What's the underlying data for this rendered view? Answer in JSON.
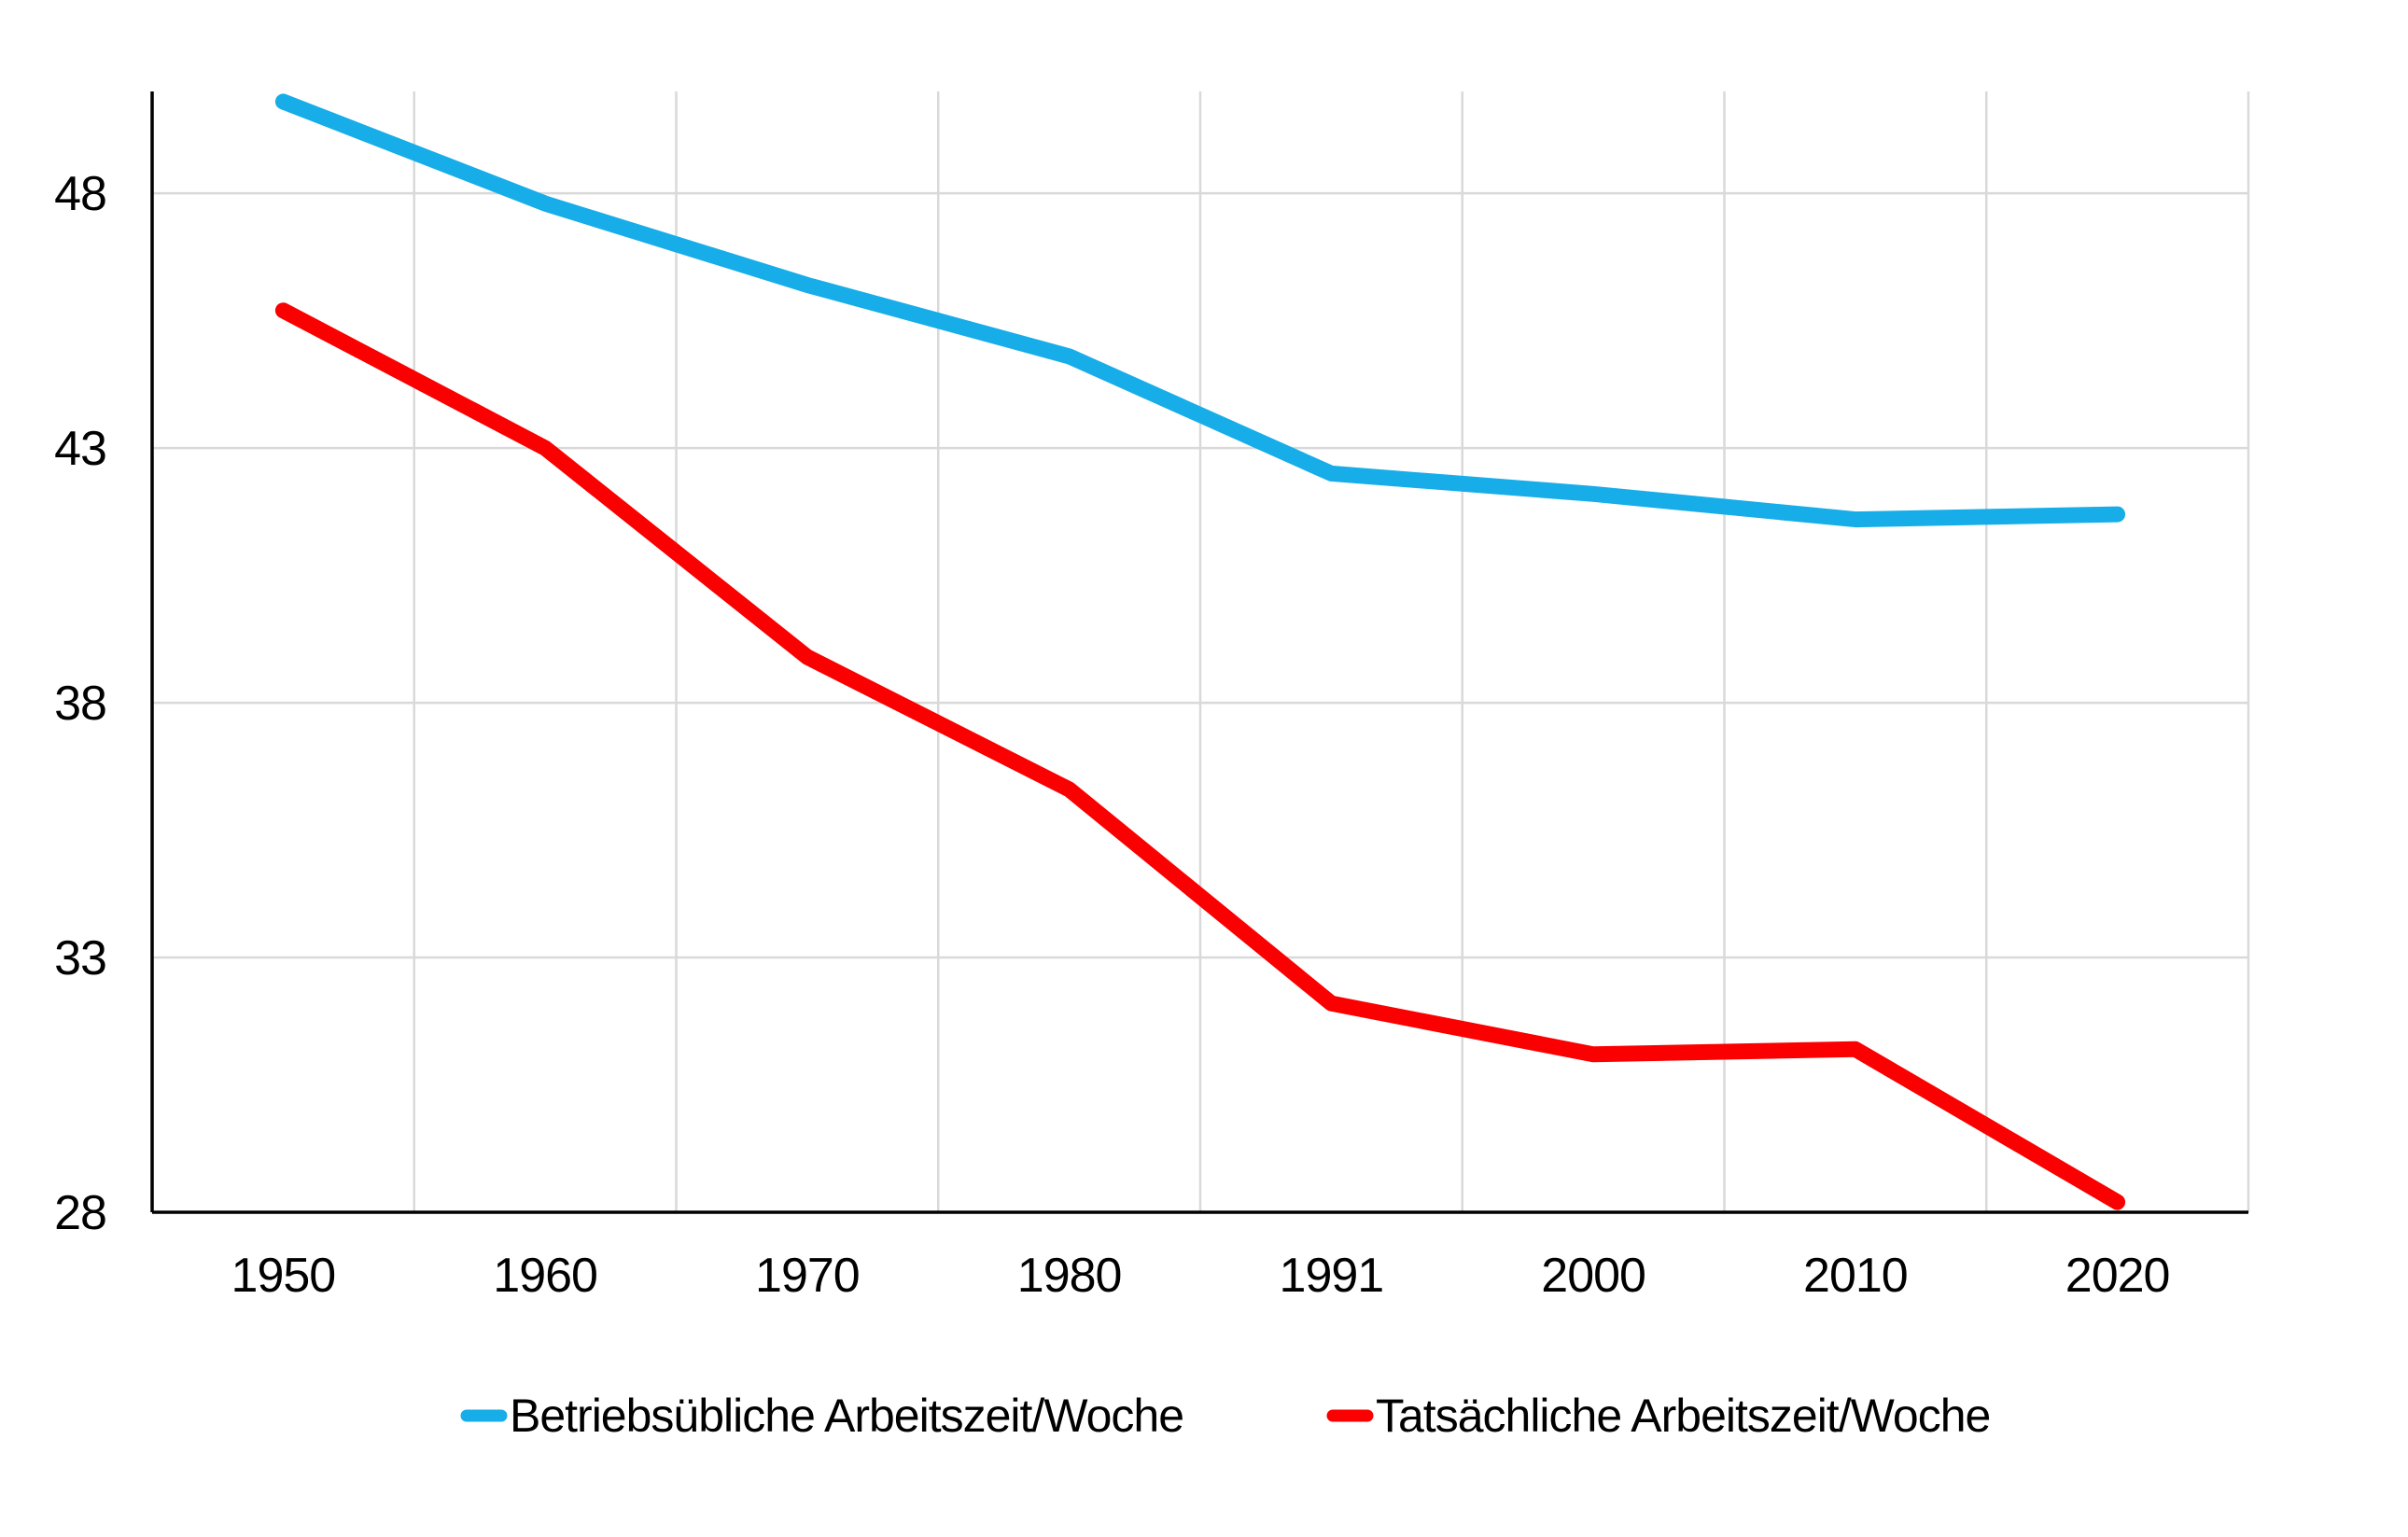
{
  "chart_data": {
    "type": "line",
    "title": "",
    "xlabel": "",
    "ylabel": "",
    "categories": [
      "1950",
      "1960",
      "1970",
      "1980",
      "1991",
      "2000",
      "2010",
      "2020"
    ],
    "series": [
      {
        "name": "Betriebsübliche Arbeitszeit/Woche",
        "color": "#17ADE8",
        "values": [
          49.8,
          47.8,
          46.2,
          44.8,
          42.5,
          42.1,
          41.6,
          41.7
        ]
      },
      {
        "name": "Tatsächliche Arbeitszeit/Woche",
        "color": "#FB0000",
        "values": [
          45.7,
          43.0,
          38.9,
          36.3,
          32.1,
          31.1,
          31.2,
          28.2
        ]
      }
    ],
    "ylim": [
      28,
      50
    ],
    "yticks": [
      28,
      33,
      38,
      43,
      48
    ],
    "grid": true,
    "gridline_color": "#D9D9D9",
    "axis_color": "#000000",
    "legend_position": "bottom"
  }
}
